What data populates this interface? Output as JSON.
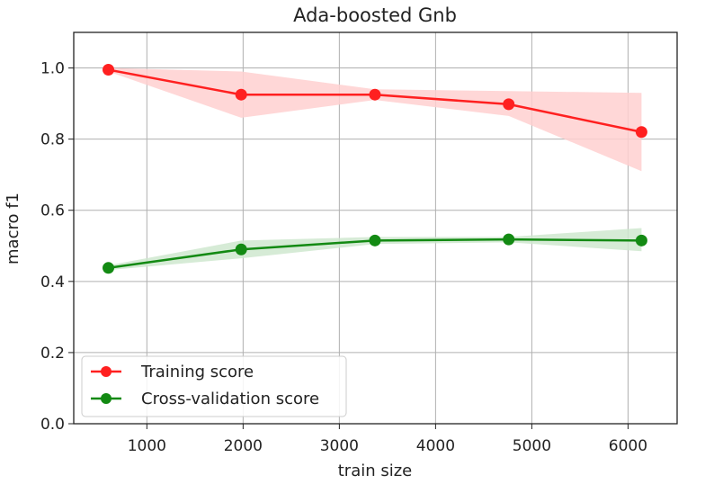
{
  "chart_data": {
    "type": "line",
    "title": "Ada-boosted Gnb",
    "xlabel": "train size",
    "ylabel": "macro f1",
    "xlim": [
      240,
      6510
    ],
    "ylim": [
      0.0,
      1.1
    ],
    "xticks": [
      1000,
      2000,
      3000,
      4000,
      5000,
      6000
    ],
    "yticks": [
      "0.0",
      "0.2",
      "0.4",
      "0.6",
      "0.8",
      "1.0"
    ],
    "grid": true,
    "legend_position": "lower-left",
    "x": [
      600,
      1980,
      3370,
      4760,
      6140
    ],
    "series": [
      {
        "name": "Training score",
        "color": "#ff2020",
        "band_color": "#ffd0d0",
        "values": [
          0.995,
          0.925,
          0.925,
          0.898,
          0.82
        ],
        "lower": [
          0.99,
          0.86,
          0.91,
          0.865,
          0.71
        ],
        "upper": [
          1.0,
          0.99,
          0.94,
          0.935,
          0.93
        ]
      },
      {
        "name": "Cross-validation score",
        "color": "#138a13",
        "band_color": "#cfe8cf",
        "values": [
          0.438,
          0.49,
          0.515,
          0.518,
          0.515
        ],
        "lower": [
          0.432,
          0.465,
          0.505,
          0.51,
          0.485
        ],
        "upper": [
          0.445,
          0.515,
          0.525,
          0.525,
          0.55
        ]
      }
    ]
  }
}
